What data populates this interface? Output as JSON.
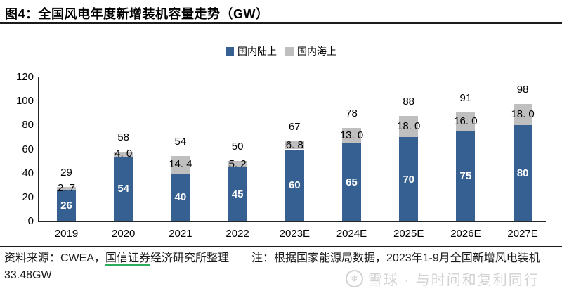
{
  "page": {
    "title": "图4：全国风电年度新增装机容量走势（GW）"
  },
  "footer": {
    "source_prefix": "资料来源：CWEA，",
    "source_link": "国信证券",
    "source_suffix": "经济研究所整理　　注：根据国家能源局数据，2023年1-9月全国新增风电装机33.48GW",
    "watermark_text": "雪球 · 与时间和复利同行",
    "watermark_icon": "❄"
  },
  "colors": {
    "onshore_blue": "#366092",
    "offshore_gray": "#BFBFBF",
    "axis": "#262626",
    "link_underline": "#2EAE5D",
    "watermark": "#D2D2D2"
  },
  "chart_data": {
    "type": "bar",
    "stacked": true,
    "title": "图4：全国风电年度新增装机容量走势（GW）",
    "categories": [
      "2019",
      "2020",
      "2021",
      "2022",
      "2023E",
      "2024E",
      "2025E",
      "2026E",
      "2027E"
    ],
    "series": [
      {
        "name": "国内陆上",
        "color": "#366092",
        "values": [
          26,
          54,
          40,
          45,
          60,
          65,
          70,
          75,
          80
        ],
        "labels": [
          "26",
          "54",
          "40",
          "45",
          "60",
          "65",
          "70",
          "75",
          "80"
        ]
      },
      {
        "name": "国内海上",
        "color": "#BFBFBF",
        "values": [
          2.7,
          4.0,
          14.4,
          5.2,
          6.8,
          13.0,
          18.0,
          16.0,
          18.0
        ],
        "labels": [
          "2. 7",
          "4. 0",
          "14. 4",
          "5. 2",
          "6. 8",
          "13. 0",
          "18. 0",
          "16. 0",
          "18. 0"
        ]
      }
    ],
    "totals": [
      29,
      58,
      54,
      50,
      67,
      78,
      88,
      91,
      98
    ],
    "total_labels": [
      "29",
      "58",
      "54",
      "50",
      "67",
      "78",
      "88",
      "91",
      "98"
    ],
    "ylim": [
      0,
      120
    ],
    "yticks": [
      0,
      20,
      40,
      60,
      80,
      100,
      120
    ],
    "xlabel": "",
    "ylabel": "",
    "legend_position": "top-center",
    "grid": false
  }
}
